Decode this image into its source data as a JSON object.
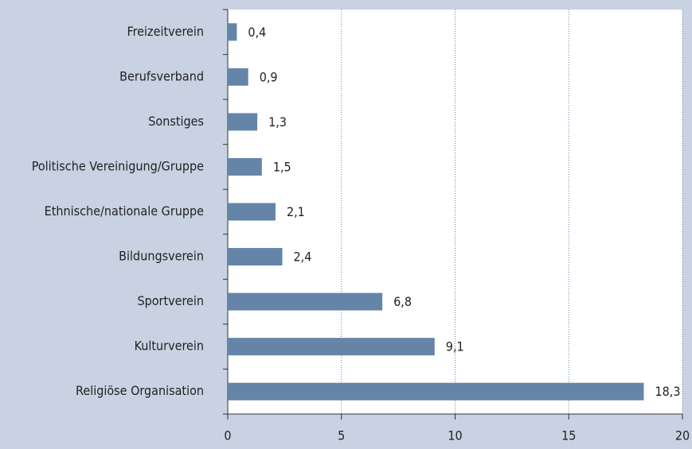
{
  "chart_data": {
    "type": "bar",
    "orientation": "horizontal",
    "categories": [
      "Freizeitverein",
      "Berufsverband",
      "Sonstiges",
      "Politische Vereinigung/Gruppe",
      "Ethnische/nationale Gruppe",
      "Bildungsverein",
      "Sportverein",
      "Kulturverein",
      "Religiöse Organisation"
    ],
    "values": [
      0.4,
      0.9,
      1.3,
      1.5,
      2.1,
      2.4,
      6.8,
      9.1,
      18.3
    ],
    "value_labels": [
      "0,4",
      "0,9",
      "1,3",
      "1,5",
      "2,1",
      "2,4",
      "6,8",
      "9,1",
      "18,3"
    ],
    "color": "#6485a8",
    "xlim": [
      0,
      20
    ],
    "xticks": [
      0,
      5,
      10,
      15,
      20
    ],
    "grid": true
  }
}
